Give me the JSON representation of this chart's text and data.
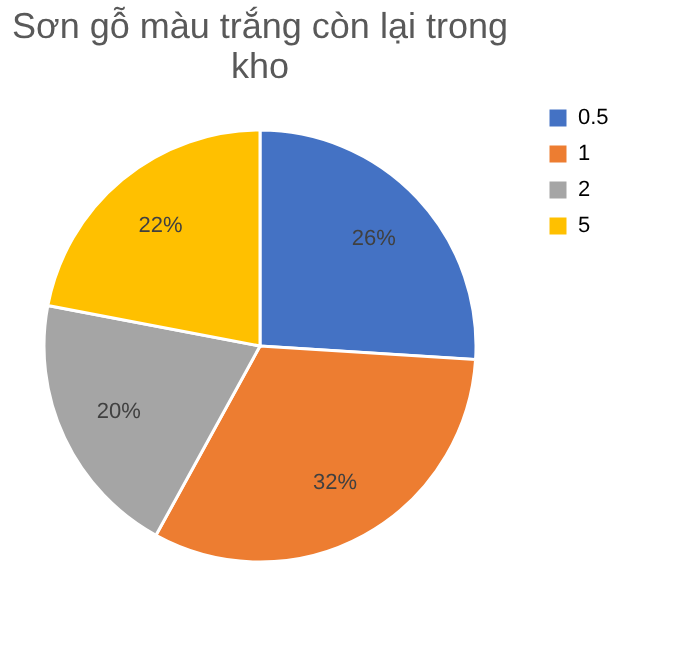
{
  "chart_data": {
    "type": "pie",
    "title": "Sơn gỗ màu trắng còn lại trong kho",
    "categories": [
      "0.5",
      "1",
      "2",
      "5"
    ],
    "values": [
      26,
      32,
      20,
      22
    ],
    "value_labels": [
      "26%",
      "32%",
      "20%",
      "22%"
    ],
    "colors": [
      "#4472c4",
      "#ed7d31",
      "#a5a5a5",
      "#ffc000"
    ],
    "legend": "right"
  }
}
